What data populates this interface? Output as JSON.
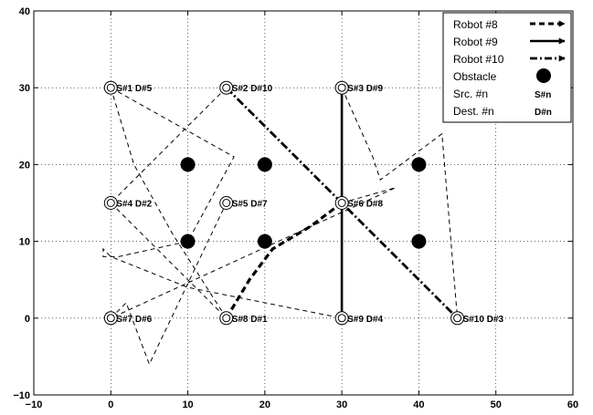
{
  "chart_data": {
    "type": "scatter",
    "title": "",
    "xlabel": "",
    "ylabel": "",
    "xlim": [
      -10,
      60
    ],
    "ylim": [
      -10,
      40
    ],
    "xticks": [
      "−10",
      "0",
      "10",
      "20",
      "30",
      "40",
      "50",
      "60"
    ],
    "yticks": [
      "−10",
      "0",
      "10",
      "20",
      "30",
      "40"
    ],
    "grid": true,
    "legend_position": "top-right",
    "legend": [
      {
        "label": "Robot #8",
        "kind": "dashed-arrow"
      },
      {
        "label": "Robot #9",
        "kind": "solid-arrow"
      },
      {
        "label": "Robot #10",
        "kind": "dashdot-arrow"
      },
      {
        "label": "Obstacle",
        "kind": "filled-circle"
      },
      {
        "label": "Src. #n",
        "kind": "text",
        "symbol": "S#n"
      },
      {
        "label": "Dest. #n",
        "kind": "text",
        "symbol": "D#n"
      }
    ],
    "stations": [
      {
        "x": 0,
        "y": 30,
        "label": "S#1 D#5"
      },
      {
        "x": 15,
        "y": 30,
        "label": "S#2 D#10"
      },
      {
        "x": 30,
        "y": 30,
        "label": "S#3 D#9"
      },
      {
        "x": 0,
        "y": 15,
        "label": "S#4 D#2"
      },
      {
        "x": 15,
        "y": 15,
        "label": "S#5 D#7"
      },
      {
        "x": 30,
        "y": 15,
        "label": "S#6 D#8"
      },
      {
        "x": 0,
        "y": 0,
        "label": "S#7 D#6"
      },
      {
        "x": 15,
        "y": 0,
        "label": "S#8 D#1"
      },
      {
        "x": 30,
        "y": 0,
        "label": "S#9 D#4"
      },
      {
        "x": 45,
        "y": 0,
        "label": "S#10 D#3"
      }
    ],
    "obstacles": [
      {
        "x": 10,
        "y": 20
      },
      {
        "x": 20,
        "y": 20
      },
      {
        "x": 40,
        "y": 20
      },
      {
        "x": 10,
        "y": 10
      },
      {
        "x": 20,
        "y": 10
      },
      {
        "x": 40,
        "y": 10
      }
    ],
    "series": [
      {
        "name": "Robot #8",
        "style": "dashed",
        "width": 1,
        "points": [
          [
            15,
            0
          ],
          [
            18,
            5
          ],
          [
            21,
            9
          ],
          [
            26,
            12
          ],
          [
            30,
            15
          ]
        ]
      },
      {
        "name": "Robot #9",
        "style": "solid",
        "width": 3,
        "points": [
          [
            30,
            0
          ],
          [
            30,
            30
          ]
        ]
      },
      {
        "name": "Robot #10",
        "style": "dashdot",
        "width": 3,
        "points": [
          [
            15,
            30
          ],
          [
            30,
            15
          ],
          [
            45,
            0
          ]
        ]
      },
      {
        "name": "",
        "style": "thin-dashed",
        "width": 1,
        "points": [
          [
            0,
            30
          ],
          [
            3,
            20
          ],
          [
            8,
            11
          ],
          [
            15,
            0
          ]
        ]
      },
      {
        "name": "",
        "style": "thin-dashed",
        "width": 1,
        "points": [
          [
            0,
            30
          ],
          [
            16,
            21
          ],
          [
            10,
            10
          ],
          [
            1,
            8
          ],
          [
            -1,
            8
          ],
          [
            -1,
            9
          ],
          [
            0,
            8
          ],
          [
            10,
            4
          ],
          [
            30,
            0
          ]
        ]
      },
      {
        "name": "",
        "style": "thin-dashed",
        "width": 1,
        "points": [
          [
            15,
            30
          ],
          [
            8,
            23
          ],
          [
            0,
            15
          ]
        ]
      },
      {
        "name": "",
        "style": "thin-dashed",
        "width": 1,
        "points": [
          [
            0,
            15
          ],
          [
            15,
            0
          ]
        ]
      },
      {
        "name": "",
        "style": "thin-dashed",
        "width": 1,
        "points": [
          [
            30,
            30
          ],
          [
            34,
            21
          ],
          [
            35,
            18
          ],
          [
            43,
            24
          ],
          [
            45,
            0
          ]
        ]
      },
      {
        "name": "",
        "style": "thin-dashed",
        "width": 1,
        "points": [
          [
            30,
            15
          ],
          [
            37,
            17
          ],
          [
            0,
            0
          ]
        ]
      },
      {
        "name": "",
        "style": "thin-dashed",
        "width": 1,
        "points": [
          [
            0,
            0
          ],
          [
            2,
            2
          ],
          [
            5,
            -6
          ],
          [
            15,
            15
          ]
        ]
      }
    ]
  }
}
